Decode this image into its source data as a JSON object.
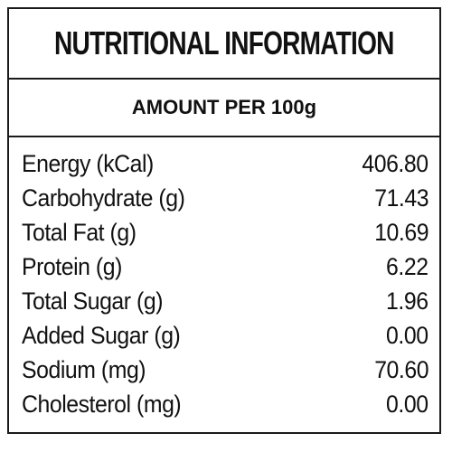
{
  "header": {
    "title": "NUTRITIONAL INFORMATION",
    "subtitle": "AMOUNT PER 100g"
  },
  "rows": [
    {
      "label": "Energy (kCal)",
      "value": "406.80"
    },
    {
      "label": "Carbohydrate (g)",
      "value": "71.43"
    },
    {
      "label": "Total Fat (g)",
      "value": "10.69"
    },
    {
      "label": "Protein (g)",
      "value": "6.22"
    },
    {
      "label": "Total Sugar (g)",
      "value": "1.96"
    },
    {
      "label": "Added Sugar (g)",
      "value": "0.00"
    },
    {
      "label": "Sodium (mg)",
      "value": "70.60"
    },
    {
      "label": "Cholesterol (mg)",
      "value": "0.00"
    }
  ]
}
